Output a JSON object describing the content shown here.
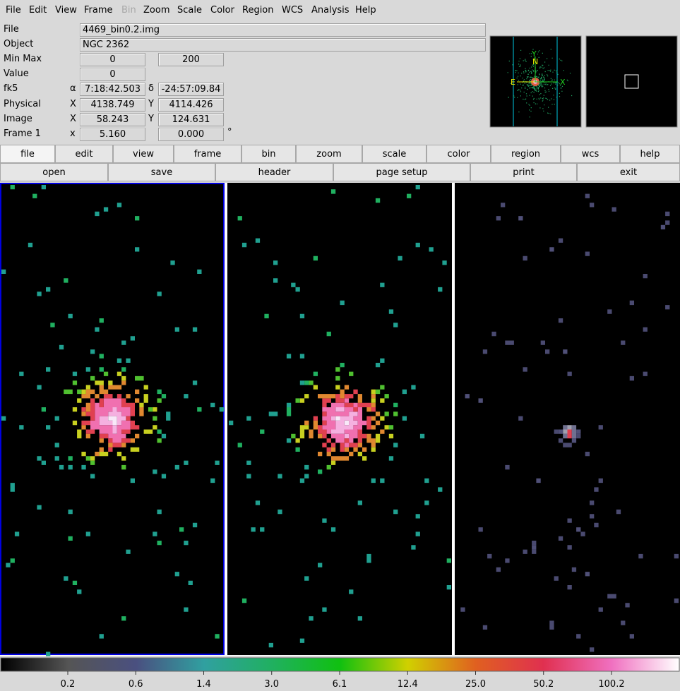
{
  "menu": [
    "File",
    "Edit",
    "View",
    "Frame",
    "Bin",
    "Zoom",
    "Scale",
    "Color",
    "Region",
    "WCS",
    "Analysis",
    "Help"
  ],
  "info": {
    "file_label": "File",
    "file": "4469_bin0.2.img",
    "object_label": "Object",
    "object": "NGC 2362",
    "minmax_label": "Min Max",
    "min": "0",
    "max": "200",
    "value_label": "Value",
    "value": "0",
    "fk5_label": "fk5",
    "alpha": "α",
    "ra": "7:18:42.503",
    "delta": "δ",
    "dec": "-24:57:09.84",
    "physical_label": "Physical",
    "px_label": "X",
    "px": "4138.749",
    "py_label": "Y",
    "py": "4114.426",
    "image_label": "Image",
    "ix_label": "X",
    "ix": "58.243",
    "iy_label": "Y",
    "iy": "124.631",
    "frame_label": "Frame 1",
    "fx_label": "x",
    "fx": "5.160",
    "fangle": "0.000",
    "deg": "°"
  },
  "panner": {
    "n": "N",
    "e": "E",
    "x": "X",
    "y": "Y"
  },
  "buttons": [
    "file",
    "edit",
    "view",
    "frame",
    "bin",
    "zoom",
    "scale",
    "color",
    "region",
    "wcs",
    "help"
  ],
  "buttons2": [
    "open",
    "save",
    "header",
    "page setup",
    "print",
    "exit"
  ],
  "colorbar": {
    "labels": [
      "0.2",
      "0.6",
      "1.4",
      "3.0",
      "6.1",
      "12.4",
      "25.0",
      "50.2",
      "100.2"
    ]
  }
}
